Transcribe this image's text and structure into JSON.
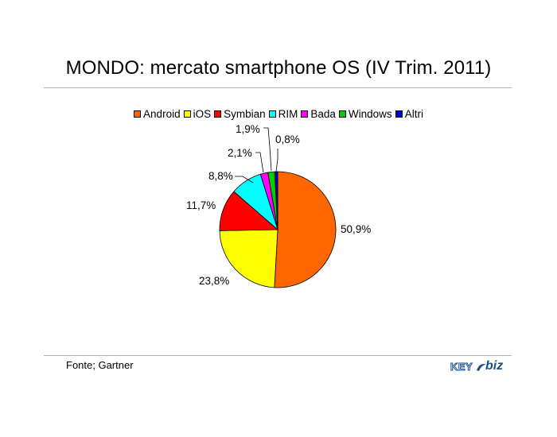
{
  "slide": {
    "title": "MONDO: mercato smartphone OS (IV Trim. 2011)",
    "source": "Fonte; Gartner",
    "logo": {
      "text_key": "KEY",
      "text_biz": "biz",
      "color": "#1a4f8a"
    }
  },
  "chart_data": {
    "type": "pie",
    "title": "",
    "legend_position": "top",
    "labels": [
      "Android",
      "iOS",
      "Symbian",
      "RIM",
      "Bada",
      "Windows",
      "Altri"
    ],
    "values": [
      50.9,
      23.8,
      11.7,
      8.8,
      2.1,
      1.9,
      0.8
    ],
    "value_labels": [
      "50,9%",
      "23,8%",
      "11,7%",
      "8,8%",
      "2,1%",
      "1,9%",
      "0,8%"
    ],
    "colors": [
      "#ff6600",
      "#ffff00",
      "#ff0000",
      "#00ffff",
      "#ff00ff",
      "#00cc00",
      "#0000cc"
    ],
    "start_angle": "12 o'clock",
    "direction": "clockwise"
  }
}
